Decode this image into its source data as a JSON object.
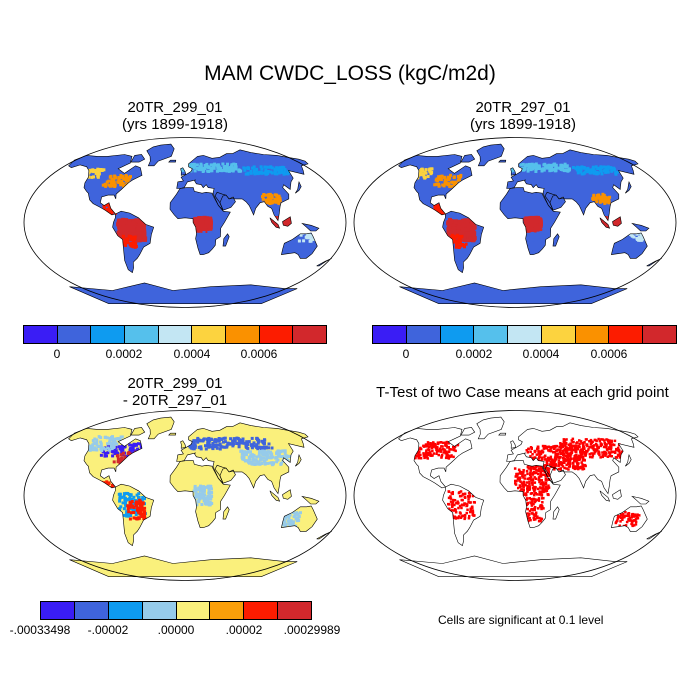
{
  "figure": {
    "title": "MAM CWDC_LOSS (kgC/m2d)",
    "panels": [
      {
        "id": "p1",
        "title_line1": "20TR_299_01",
        "title_line2": "(yrs 1899-1918)",
        "kind": "mean"
      },
      {
        "id": "p2",
        "title_line1": "20TR_297_01",
        "title_line2": "(yrs 1899-1918)",
        "kind": "mean"
      },
      {
        "id": "p3",
        "title_line1": "20TR_299_01",
        "title_line2": "- 20TR_297_01",
        "kind": "difference"
      },
      {
        "id": "p4",
        "title_line1": "T-Test of two Case means at each grid point",
        "title_line2": "",
        "kind": "ttest"
      }
    ],
    "mean_colorbar": {
      "colors": [
        "#3a1df5",
        "#3f64dc",
        "#0e9bf0",
        "#55c0ec",
        "#c3e6f3",
        "#fcd33f",
        "#fa9100",
        "#fc1c00",
        "#d2282c"
      ],
      "tick_labels": [
        "0",
        "0.0002",
        "0.0004",
        "0.0006"
      ]
    },
    "diff_colorbar": {
      "colors": [
        "#3a1df5",
        "#3f64dc",
        "#0e9bf0",
        "#96cbea",
        "#faf07c",
        "#fa9f0a",
        "#fc1c00",
        "#d2282c"
      ],
      "tick_labels": [
        "-.00033498",
        "-.00002",
        ".00000",
        ".00002",
        ".00029989"
      ]
    },
    "significance_note": "Cells are significant at 0.1 level",
    "colors": {
      "ocean": "#ffffff",
      "land_mean": "#3f64dc",
      "land_diff": "#faf07c",
      "signif": "#ff0000",
      "coast": "#000000"
    }
  }
}
